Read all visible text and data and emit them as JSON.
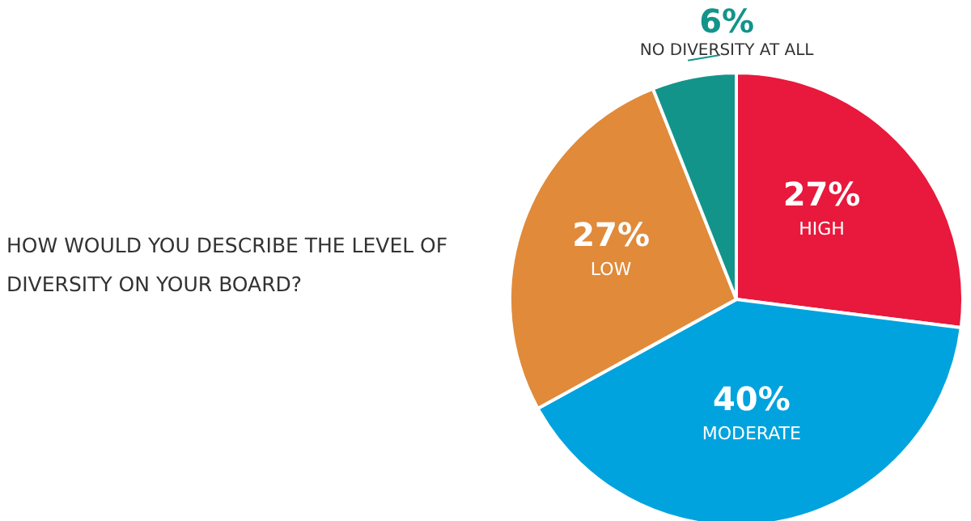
{
  "chart_data": {
    "type": "pie",
    "title": "HOW WOULD YOU DESCRIBE THE LEVEL OF DIVERSITY ON YOUR BOARD?",
    "categories": [
      "HIGH",
      "MODERATE",
      "LOW",
      "NO DIVERSITY AT ALL"
    ],
    "values": [
      27,
      40,
      27,
      6
    ],
    "value_labels": [
      "27%",
      "40%",
      "27%",
      "6%"
    ],
    "colors": [
      "#e8193c",
      "#00a3de",
      "#e08a3a",
      "#13948a"
    ],
    "legend": false
  }
}
